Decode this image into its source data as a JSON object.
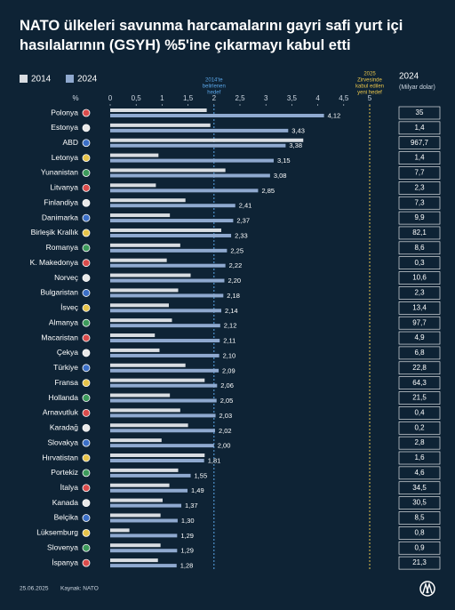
{
  "chart_data": {
    "type": "grouped-hbar",
    "title": "NATO ülkeleri savunma harcamalarını gayri safi yurt içi hasılalarının (GSYH) %5'ine çıkarmayı kabul etti",
    "x_unit": "%",
    "categories": [
      "Polonya",
      "Estonya",
      "ABD",
      "Letonya",
      "Yunanistan",
      "Litvanya",
      "Finlandiya",
      "Danimarka",
      "Birleşik Krallık",
      "Romanya",
      "K. Makedonya",
      "Norveç",
      "Bulgaristan",
      "İsveç",
      "Almanya",
      "Macaristan",
      "Çekya",
      "Türkiye",
      "Fransa",
      "Hollanda",
      "Arnavutluk",
      "Karadağ",
      "Slovakya",
      "Hırvatistan",
      "Portekiz",
      "İtalya",
      "Kanada",
      "Belçika",
      "Lüksemburg",
      "Slovenya",
      "İspanya"
    ],
    "series": [
      {
        "name": "2014",
        "color": "#d9dde2",
        "values": [
          1.86,
          1.93,
          3.72,
          0.93,
          2.22,
          0.88,
          1.45,
          1.15,
          2.14,
          1.35,
          1.09,
          1.55,
          1.31,
          1.13,
          1.19,
          0.86,
          0.95,
          1.45,
          1.82,
          1.15,
          1.35,
          1.5,
          0.99,
          1.82,
          1.31,
          1.14,
          1.01,
          0.97,
          0.37,
          0.97,
          0.92
        ]
      },
      {
        "name": "2024",
        "color": "#8fa9cf",
        "values": [
          4.12,
          3.43,
          3.38,
          3.15,
          3.08,
          2.85,
          2.41,
          2.37,
          2.33,
          2.25,
          2.22,
          2.2,
          2.18,
          2.14,
          2.12,
          2.11,
          2.1,
          2.09,
          2.06,
          2.05,
          2.03,
          2.02,
          2,
          1.81,
          1.55,
          1.49,
          1.37,
          1.3,
          1.29,
          1.29,
          1.28
        ],
        "value_labels": [
          "4,12",
          "3,43",
          "3,38",
          "3,15",
          "3,08",
          "2,85",
          "2,41",
          "2,37",
          "2,33",
          "2,25",
          "2,22",
          "2,20",
          "2,18",
          "2,14",
          "2,12",
          "2,11",
          "2,10",
          "2,09",
          "2,06",
          "2,05",
          "2,03",
          "2,02",
          "2,00",
          "1,81",
          "1,55",
          "1,49",
          "1,37",
          "1,30",
          "1,29",
          "1,29",
          "1,28"
        ]
      }
    ],
    "xlim": [
      0,
      5
    ],
    "xticks": [
      0,
      {
        "value": 0.5,
        "label": "0,5"
      },
      1,
      {
        "value": 1.5,
        "label": "1,5"
      },
      2,
      {
        "value": 2.5,
        "label": "2,5"
      },
      3,
      {
        "value": 3.5,
        "label": "3,5"
      },
      4,
      {
        "value": 4.5,
        "label": "4,5"
      },
      5
    ],
    "reference_lines": [
      {
        "value": 2,
        "color": "#5aa6e8",
        "text": [
          "2014'te",
          "belirlenen",
          "hedef"
        ]
      },
      {
        "value": 5,
        "color": "#e6c34a",
        "text": [
          "2025",
          "Zirvesinde",
          "kabul edilen",
          "yeni hedef"
        ]
      }
    ],
    "spending": {
      "title": "2024",
      "subtitle": "(Milyar dolar)",
      "values": [
        35,
        1.4,
        967.7,
        1.4,
        7.7,
        2.3,
        7.3,
        9.9,
        82.1,
        8.6,
        0.3,
        10.6,
        2.3,
        13.4,
        97.7,
        4.9,
        6.8,
        22.8,
        64.3,
        21.5,
        0.4,
        0.2,
        2.8,
        1.6,
        4.6,
        34.5,
        30.5,
        8.5,
        0.8,
        0.9,
        21.3
      ],
      "value_labels": [
        "35",
        "1,4",
        "967,7",
        "1,4",
        "7,7",
        "2,3",
        "7,3",
        "9,9",
        "82,1",
        "8,6",
        "0,3",
        "10,6",
        "2,3",
        "13,4",
        "97,7",
        "4,9",
        "6,8",
        "22,8",
        "64,3",
        "21,5",
        "0,4",
        "0,2",
        "2,8",
        "1,6",
        "4,6",
        "34,5",
        "30,5",
        "8,5",
        "0,8",
        "0,9",
        "21,3"
      ]
    },
    "date": "25.06.2025",
    "source": "Kaynak: NATO"
  }
}
